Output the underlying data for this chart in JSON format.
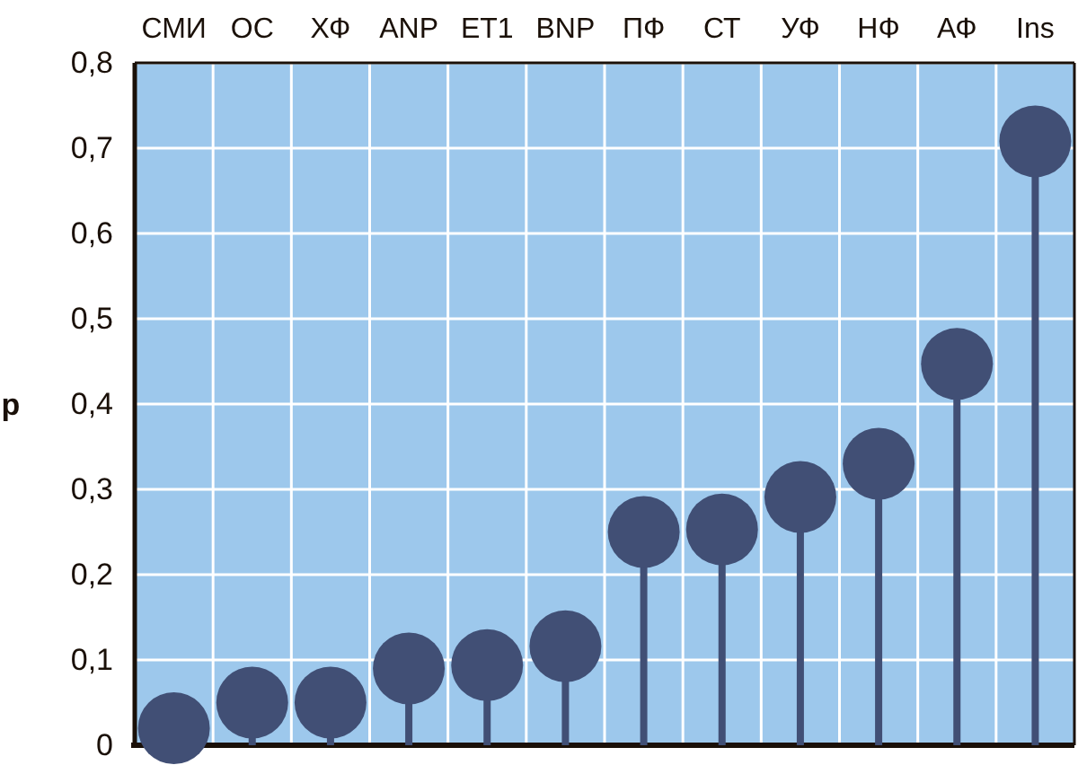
{
  "chart_data": {
    "type": "lollipop",
    "ylabel": "p",
    "categories": [
      "СМИ",
      "ОС",
      "ХФ",
      "ANP",
      "ET1",
      "BNP",
      "ПФ",
      "СТ",
      "УФ",
      "НФ",
      "АФ",
      "Ins"
    ],
    "values": [
      0.02,
      0.05,
      0.05,
      0.09,
      0.094,
      0.116,
      0.25,
      0.253,
      0.291,
      0.33,
      0.447,
      0.708
    ],
    "color": "#414f75",
    "marker": "circle",
    "grid": true,
    "ylim": [
      0,
      0.8
    ],
    "yticks": [
      {
        "value": 0,
        "label": "0"
      },
      {
        "value": 0.1,
        "label": "0,1"
      },
      {
        "value": 0.2,
        "label": "0,2"
      },
      {
        "value": 0.3,
        "label": "0,3"
      },
      {
        "value": 0.4,
        "label": "0,4"
      },
      {
        "value": 0.5,
        "label": "0,5"
      },
      {
        "value": 0.6,
        "label": "0,6"
      },
      {
        "value": 0.7,
        "label": "0,7"
      },
      {
        "value": 0.8,
        "label": "0,8"
      }
    ]
  }
}
